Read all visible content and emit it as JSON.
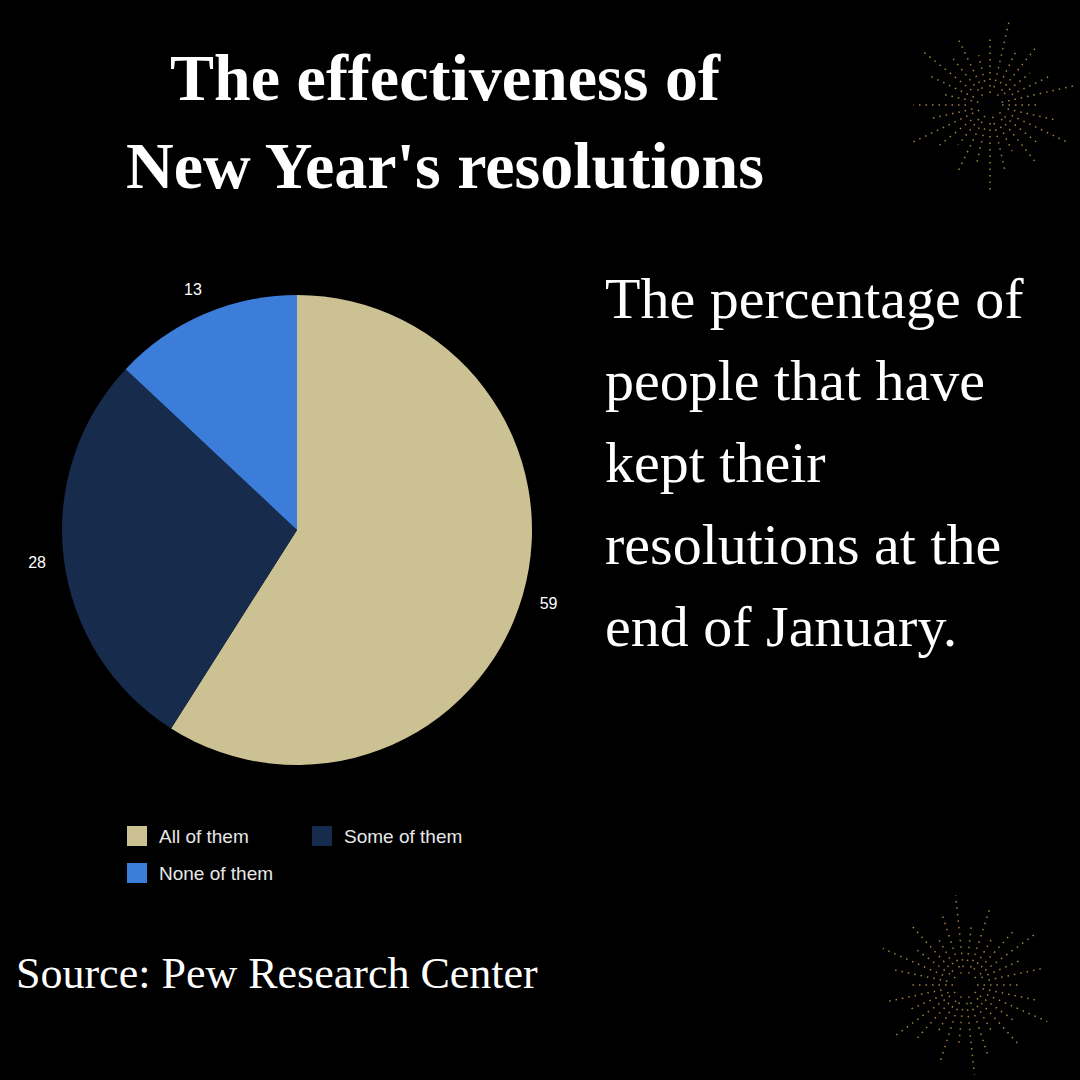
{
  "chart_data": {
    "type": "pie",
    "title": "The effectiveness of New Year's resolutions",
    "subtitle": "The percentage of people that have kept their resolutions at the end of January.",
    "categories": [
      "All of them",
      "Some of them",
      "None of them"
    ],
    "values": [
      59,
      28,
      13
    ],
    "colors": [
      "#cbc192",
      "#172b4d",
      "#3b7dd8"
    ],
    "data_labels": true,
    "legend": "bottom",
    "annotations": [
      "Source: Pew Research Center"
    ]
  }
}
